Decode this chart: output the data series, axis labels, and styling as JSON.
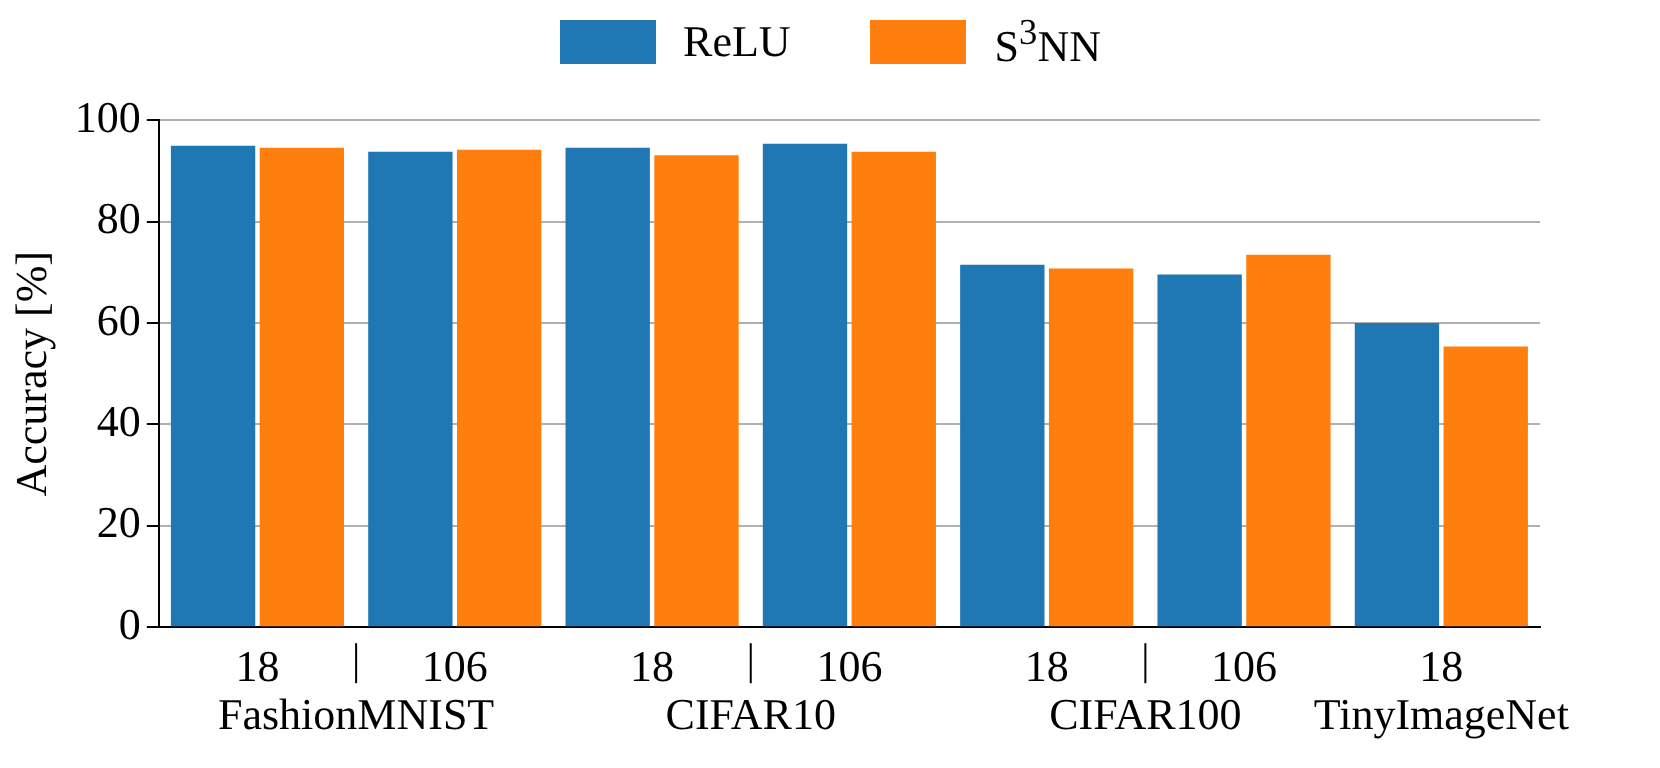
{
  "chart_data": {
    "type": "bar",
    "ylabel": "Accuracy [%]",
    "categories": [
      "18",
      "106",
      "18",
      "106",
      "18",
      "106",
      "18"
    ],
    "series": [
      {
        "name": "ReLU",
        "color": "#1f77b4",
        "values": [
          95.0,
          93.8,
          94.6,
          95.4,
          71.5,
          69.6,
          60.0
        ]
      },
      {
        "name": "S$^{3}$NN",
        "color": "#ff7f0e",
        "values": [
          94.6,
          94.2,
          93.1,
          93.8,
          70.8,
          73.5,
          55.4
        ]
      }
    ],
    "annotations": [
      "FashionMNIST",
      "CIFAR10",
      "CIFAR100",
      "TinyImageNet"
    ],
    "ylim": [
      0,
      100
    ],
    "yticks": [
      0,
      20,
      40,
      60,
      80,
      100
    ],
    "grid": "y",
    "legend": "top"
  }
}
